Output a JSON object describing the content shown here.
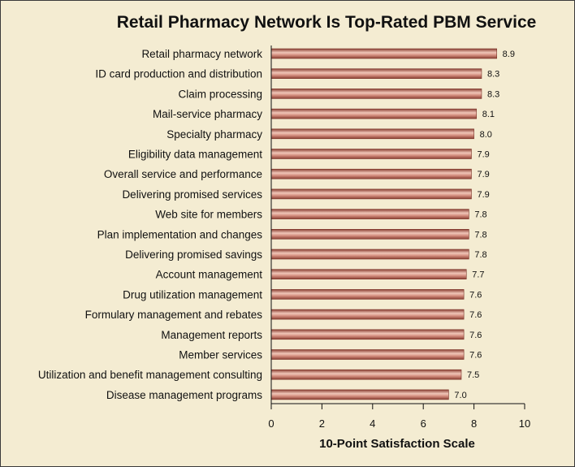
{
  "chart_data": {
    "type": "bar",
    "orientation": "horizontal",
    "title": "Retail Pharmacy Network Is Top-Rated PBM Service",
    "xlabel": "10-Point Satisfaction Scale",
    "ylabel": "",
    "xlim": [
      0,
      10
    ],
    "xticks": [
      0,
      2,
      4,
      6,
      8,
      10
    ],
    "grid": false,
    "colors": {
      "bar": "#a8574a",
      "bar_highlight": "#f0c6b8",
      "background": "#f4ecd2"
    },
    "categories": [
      "Retail pharmacy network",
      "ID card production and distribution",
      "Claim processing",
      "Mail-service pharmacy",
      "Specialty pharmacy",
      "Eligibility data management",
      "Overall service and performance",
      "Delivering promised services",
      "Web site for members",
      "Plan implementation and changes",
      "Delivering promised savings",
      "Account management",
      "Drug utilization management",
      "Formulary management and rebates",
      "Management reports",
      "Member services",
      "Utilization and benefit management consulting",
      "Disease management programs"
    ],
    "values": [
      8.9,
      8.3,
      8.3,
      8.1,
      8.0,
      7.9,
      7.9,
      7.9,
      7.8,
      7.8,
      7.8,
      7.7,
      7.6,
      7.6,
      7.6,
      7.6,
      7.5,
      7.0
    ],
    "value_labels": [
      "8.9",
      "8.3",
      "8.3",
      "8.1",
      "8.0",
      "7.9",
      "7.9",
      "7.9",
      "7.8",
      "7.8",
      "7.8",
      "7.7",
      "7.6",
      "7.6",
      "7.6",
      "7.6",
      "7.5",
      "7.0"
    ]
  }
}
